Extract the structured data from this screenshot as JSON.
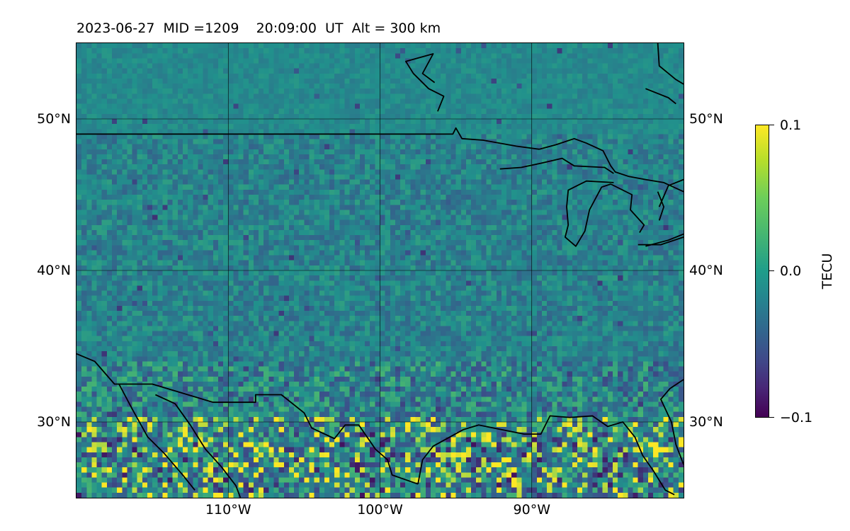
{
  "title": "2023-06-27  MID =1209    20:09:00  UT  Alt = 300 km",
  "map": {
    "lon_range": [
      -120,
      -80
    ],
    "lat_range": [
      25,
      55
    ],
    "lat_ticks": [
      {
        "value": 30,
        "label": "30°N"
      },
      {
        "value": 40,
        "label": "40°N"
      },
      {
        "value": 50,
        "label": "50°N"
      }
    ],
    "lon_ticks": [
      {
        "value": -110,
        "label": "110°W"
      },
      {
        "value": -100,
        "label": "100°W"
      },
      {
        "value": -90,
        "label": "90°W"
      }
    ]
  },
  "colorbar": {
    "label": "TECU",
    "min": -0.1,
    "max": 0.1,
    "ticks": [
      {
        "value": 0.1,
        "label": "0.1"
      },
      {
        "value": 0.0,
        "label": "0.0"
      },
      {
        "value": -0.1,
        "label": "−0.1"
      }
    ],
    "colormap": [
      "#440154",
      "#3b528b",
      "#21918c",
      "#5ec962",
      "#fde725"
    ]
  },
  "coastlines": [
    [
      [
        -120,
        34.5
      ],
      [
        -118.8,
        34.0
      ],
      [
        -117.5,
        32.5
      ],
      [
        -115,
        32.5
      ],
      [
        -111,
        31.3
      ],
      [
        -108.2,
        31.3
      ],
      [
        -108.2,
        31.8
      ],
      [
        -106.5,
        31.8
      ],
      [
        -105,
        30.6
      ],
      [
        -104.5,
        29.6
      ],
      [
        -103,
        28.9
      ],
      [
        -102.3,
        29.8
      ],
      [
        -101.4,
        29.8
      ],
      [
        -100.3,
        28.2
      ],
      [
        -99.5,
        27.5
      ],
      [
        -99.2,
        26.5
      ],
      [
        -97.5,
        25.9
      ]
    ],
    [
      [
        -117.2,
        32.5
      ],
      [
        -116.3,
        30.8
      ],
      [
        -115.3,
        29.0
      ],
      [
        -114.2,
        27.9
      ],
      [
        -113,
        26.5
      ],
      [
        -112.2,
        25.5
      ]
    ],
    [
      [
        -114.8,
        31.8
      ],
      [
        -113.5,
        31.2
      ],
      [
        -112.5,
        29.8
      ],
      [
        -111.5,
        28.2
      ],
      [
        -110.5,
        27.1
      ],
      [
        -109.5,
        25.8
      ],
      [
        -109.2,
        25.0
      ]
    ],
    [
      [
        -97.5,
        25.9
      ],
      [
        -97.2,
        27.5
      ],
      [
        -96.5,
        28.4
      ],
      [
        -94.5,
        29.5
      ],
      [
        -93.5,
        29.8
      ],
      [
        -92,
        29.5
      ],
      [
        -90.5,
        29.2
      ],
      [
        -89.4,
        29.2
      ],
      [
        -88.8,
        30.4
      ],
      [
        -87.5,
        30.3
      ],
      [
        -86,
        30.4
      ],
      [
        -85,
        29.7
      ],
      [
        -84,
        30.0
      ],
      [
        -83.2,
        29.0
      ],
      [
        -82.7,
        27.8
      ],
      [
        -82,
        26.8
      ],
      [
        -81.2,
        25.5
      ],
      [
        -80.6,
        25.2
      ]
    ],
    [
      [
        -80,
        27.2
      ],
      [
        -80.5,
        28.5
      ],
      [
        -80.8,
        30.0
      ],
      [
        -81.5,
        31.5
      ],
      [
        -80.9,
        32.2
      ],
      [
        -80,
        32.8
      ]
    ],
    [
      [
        -120,
        49.0
      ],
      [
        -95.2,
        49.0
      ],
      [
        -95.0,
        49.4
      ],
      [
        -94.6,
        48.7
      ],
      [
        -93.2,
        48.6
      ],
      [
        -91,
        48.2
      ],
      [
        -89.5,
        48.0
      ]
    ],
    [
      [
        -89.5,
        48.0
      ],
      [
        -88.4,
        48.3
      ],
      [
        -87.2,
        48.7
      ],
      [
        -86.4,
        48.4
      ],
      [
        -85.3,
        47.9
      ],
      [
        -84.8,
        46.9
      ],
      [
        -84.5,
        46.5
      ],
      [
        -83.6,
        46.2
      ],
      [
        -82.5,
        46.0
      ],
      [
        -81.3,
        45.8
      ],
      [
        -80.0,
        45.2
      ]
    ],
    [
      [
        -92.1,
        46.7
      ],
      [
        -90.7,
        46.8
      ],
      [
        -89.3,
        47.1
      ],
      [
        -88.0,
        47.4
      ],
      [
        -87.2,
        46.9
      ],
      [
        -85.2,
        46.8
      ],
      [
        -84.6,
        46.4
      ]
    ],
    [
      [
        -84.6,
        45.8
      ],
      [
        -86.4,
        45.9
      ],
      [
        -87.6,
        45.3
      ],
      [
        -87.7,
        44.2
      ],
      [
        -87.6,
        43.0
      ],
      [
        -87.8,
        42.2
      ],
      [
        -87.1,
        41.6
      ],
      [
        -86.5,
        42.6
      ],
      [
        -86.2,
        44.0
      ],
      [
        -85.4,
        45.5
      ],
      [
        -84.8,
        45.7
      ]
    ],
    [
      [
        -84.8,
        45.7
      ],
      [
        -83.4,
        45.0
      ],
      [
        -83.5,
        44.0
      ],
      [
        -82.6,
        43.0
      ],
      [
        -82.9,
        42.5
      ]
    ],
    [
      [
        -82.5,
        41.6
      ],
      [
        -81.0,
        42.0
      ],
      [
        -80,
        42.4
      ]
    ],
    [
      [
        -83.0,
        41.7
      ],
      [
        -81.5,
        41.7
      ],
      [
        -80,
        42.2
      ]
    ],
    [
      [
        -81.7,
        45.2
      ],
      [
        -81.3,
        44.2
      ],
      [
        -81.6,
        43.3
      ]
    ],
    [
      [
        -80.0,
        46.0
      ],
      [
        -81.0,
        45.6
      ],
      [
        -81.6,
        44.2
      ]
    ],
    [
      [
        -96.2,
        50.5
      ],
      [
        -95.8,
        51.5
      ],
      [
        -96.8,
        52.0
      ],
      [
        -97.8,
        53.0
      ],
      [
        -98.3,
        53.8
      ],
      [
        -96.5,
        54.3
      ],
      [
        -97.2,
        53.0
      ],
      [
        -96.4,
        52.4
      ]
    ],
    [
      [
        -81.7,
        55
      ],
      [
        -81.6,
        53.5
      ],
      [
        -80.5,
        52.6
      ],
      [
        -80,
        52.3
      ]
    ],
    [
      [
        -82.5,
        52.0
      ],
      [
        -81.0,
        51.4
      ],
      [
        -80.5,
        51.0
      ]
    ]
  ]
}
